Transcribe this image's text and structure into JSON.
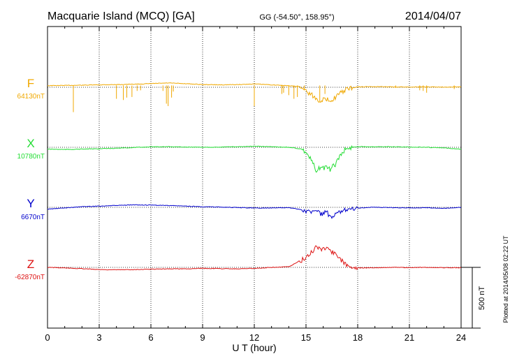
{
  "header": {
    "station": "Macquarie Island (MCQ)  [GA]",
    "coords": "GG (-54.50°, 158.95°)",
    "date": "2014/04/07"
  },
  "plotted_note": "Plotted at 2014/05/08 02:22 UT",
  "scale_bar_label": "500 nT",
  "chart_data": {
    "type": "line",
    "xlabel": "U T (hour)",
    "xlim": [
      0,
      24
    ],
    "xticks": [
      "0",
      "3",
      "6",
      "9",
      "12",
      "15",
      "18",
      "21",
      "24"
    ],
    "grid": true,
    "scale_nT": 500,
    "components": [
      {
        "name": "F",
        "baseline_label": "64130nT",
        "color": "#f0a800",
        "points": [
          [
            0,
            -13
          ],
          [
            1,
            -15
          ],
          [
            2,
            -17
          ],
          [
            3,
            -20
          ],
          [
            4,
            -22
          ],
          [
            5,
            -25
          ],
          [
            6,
            -30
          ],
          [
            7,
            -35
          ],
          [
            8,
            -30
          ],
          [
            9,
            -22
          ],
          [
            10,
            -20
          ],
          [
            11,
            -22
          ],
          [
            12,
            -27
          ],
          [
            13,
            -20
          ],
          [
            14,
            -12
          ],
          [
            14.7,
            -5
          ],
          [
            15.1,
            40
          ],
          [
            15.4,
            70
          ],
          [
            15.7,
            110
          ],
          [
            16.0,
            100
          ],
          [
            16.3,
            105
          ],
          [
            16.6,
            95
          ],
          [
            16.9,
            60
          ],
          [
            17.3,
            20
          ],
          [
            17.7,
            5
          ],
          [
            18,
            -3
          ],
          [
            19,
            -5
          ],
          [
            20,
            -3
          ],
          [
            21,
            -2
          ],
          [
            22,
            -3
          ],
          [
            23,
            -2
          ],
          [
            24,
            -3
          ]
        ],
        "spikes": [
          [
            1.5,
            220
          ],
          [
            4.0,
            110
          ],
          [
            4.4,
            120
          ],
          [
            4.6,
            100
          ],
          [
            4.9,
            95
          ],
          [
            5.2,
            45
          ],
          [
            5.4,
            40
          ],
          [
            6.7,
            45
          ],
          [
            6.9,
            150
          ],
          [
            7.0,
            170
          ],
          [
            7.2,
            100
          ],
          [
            7.3,
            50
          ],
          [
            12.0,
            170
          ],
          [
            13.6,
            70
          ],
          [
            13.7,
            60
          ],
          [
            14.0,
            80
          ],
          [
            14.3,
            110
          ],
          [
            14.5,
            95
          ],
          [
            14.9,
            40
          ],
          [
            15.8,
            130
          ],
          [
            16.1,
            70
          ],
          [
            20.2,
            20
          ],
          [
            21.6,
            40
          ],
          [
            21.8,
            45
          ],
          [
            22.0,
            60
          ],
          [
            23.6,
            30
          ]
        ]
      },
      {
        "name": "X",
        "baseline_label": "10780nT",
        "color": "#22dd33",
        "points": [
          [
            0,
            15
          ],
          [
            1,
            18
          ],
          [
            2,
            15
          ],
          [
            3,
            12
          ],
          [
            4,
            8
          ],
          [
            5,
            2
          ],
          [
            6,
            -4
          ],
          [
            7,
            -5
          ],
          [
            8,
            -2
          ],
          [
            9,
            0
          ],
          [
            10,
            -2
          ],
          [
            11,
            -5
          ],
          [
            12,
            -8
          ],
          [
            13,
            -5
          ],
          [
            14,
            0
          ],
          [
            14.8,
            15
          ],
          [
            15.1,
            60
          ],
          [
            15.4,
            130
          ],
          [
            15.6,
            210
          ],
          [
            15.8,
            165
          ],
          [
            16.1,
            170
          ],
          [
            16.4,
            180
          ],
          [
            16.7,
            140
          ],
          [
            17.0,
            60
          ],
          [
            17.3,
            15
          ],
          [
            17.7,
            0
          ],
          [
            18,
            -5
          ],
          [
            19,
            -5
          ],
          [
            20,
            -4
          ],
          [
            21,
            -2
          ],
          [
            22,
            0
          ],
          [
            23,
            5
          ],
          [
            24,
            15
          ]
        ]
      },
      {
        "name": "Y",
        "baseline_label": "6670nT",
        "color": "#0000cc",
        "points": [
          [
            0,
            15
          ],
          [
            1,
            5
          ],
          [
            2,
            -5
          ],
          [
            3,
            -10
          ],
          [
            4,
            -15
          ],
          [
            5,
            -20
          ],
          [
            6,
            -18
          ],
          [
            7,
            -15
          ],
          [
            8,
            -10
          ],
          [
            9,
            -5
          ],
          [
            10,
            -2
          ],
          [
            11,
            2
          ],
          [
            12,
            5
          ],
          [
            13,
            5
          ],
          [
            14,
            3
          ],
          [
            14.8,
            20
          ],
          [
            15.2,
            40
          ],
          [
            15.6,
            30
          ],
          [
            15.9,
            55
          ],
          [
            16.2,
            40
          ],
          [
            16.5,
            100
          ],
          [
            16.8,
            50
          ],
          [
            17.1,
            30
          ],
          [
            17.4,
            10
          ],
          [
            18,
            5
          ],
          [
            19,
            0
          ],
          [
            20,
            2
          ],
          [
            21,
            5
          ],
          [
            22,
            3
          ],
          [
            23,
            8
          ],
          [
            24,
            0
          ]
        ]
      },
      {
        "name": "Z",
        "baseline_label": "-62870nT",
        "color": "#dd1111",
        "points": [
          [
            0,
            0
          ],
          [
            1,
            5
          ],
          [
            2,
            10
          ],
          [
            3,
            18
          ],
          [
            4,
            20
          ],
          [
            5,
            18
          ],
          [
            6,
            15
          ],
          [
            7,
            12
          ],
          [
            8,
            12
          ],
          [
            9,
            8
          ],
          [
            10,
            10
          ],
          [
            11,
            12
          ],
          [
            12,
            8
          ],
          [
            13,
            0
          ],
          [
            14,
            -5
          ],
          [
            14.6,
            -50
          ],
          [
            15.0,
            -75
          ],
          [
            15.3,
            -120
          ],
          [
            15.6,
            -175
          ],
          [
            15.9,
            -150
          ],
          [
            16.2,
            -170
          ],
          [
            16.5,
            -130
          ],
          [
            16.8,
            -90
          ],
          [
            17.1,
            -50
          ],
          [
            17.5,
            -10
          ],
          [
            18,
            5
          ],
          [
            19,
            3
          ],
          [
            20,
            0
          ],
          [
            21,
            2
          ],
          [
            22,
            0
          ],
          [
            23,
            2
          ],
          [
            24,
            3
          ]
        ]
      }
    ]
  }
}
